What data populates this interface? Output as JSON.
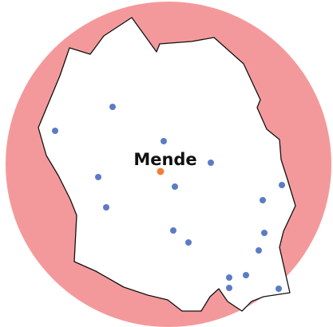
{
  "map": {
    "city_label": "Mende"
  }
}
